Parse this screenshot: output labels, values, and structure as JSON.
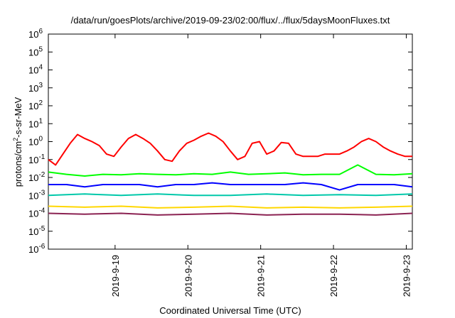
{
  "chart_data": {
    "type": "line",
    "title": "/data/run/goesPlots/archive/2019-09-23/02:00/flux/../flux/5daysMoonFluxes.txt",
    "xlabel": "Coordinated Universal Time (UTC)",
    "ylabel": "protons/cm2-s-sr-MeV",
    "ylabel_parts": {
      "pre": "protons/cm",
      "sup": "2",
      "post": "-s-sr-MeV"
    },
    "yscale": "log",
    "ylim": [
      1e-06,
      1000000.0
    ],
    "y_ticks": [
      {
        "value": 1e-06,
        "base": "10",
        "exp": "-6"
      },
      {
        "value": 1e-05,
        "base": "10",
        "exp": "-5"
      },
      {
        "value": 0.0001,
        "base": "10",
        "exp": "-4"
      },
      {
        "value": 0.001,
        "base": "10",
        "exp": "-3"
      },
      {
        "value": 0.01,
        "base": "10",
        "exp": "-2"
      },
      {
        "value": 0.1,
        "base": "10",
        "exp": "-1"
      },
      {
        "value": 1.0,
        "base": "10",
        "exp": "0"
      },
      {
        "value": 10.0,
        "base": "10",
        "exp": "1"
      },
      {
        "value": 100.0,
        "base": "10",
        "exp": "2"
      },
      {
        "value": 1000.0,
        "base": "10",
        "exp": "3"
      },
      {
        "value": 10000.0,
        "base": "10",
        "exp": "4"
      },
      {
        "value": 100000.0,
        "base": "10",
        "exp": "5"
      },
      {
        "value": 1000000.0,
        "base": "10",
        "exp": "6"
      }
    ],
    "xlim": [
      "2019-09-18 02:00",
      "2019-09-23 02:00"
    ],
    "x_ticks": [
      "2019-9-19",
      "2019-9-20",
      "2019-9-21",
      "2019-9-22",
      "2019-9-23"
    ],
    "grid": false,
    "legend": "none",
    "series": [
      {
        "color": "#ff0000",
        "x_days": [
          0,
          0.1,
          0.2,
          0.3,
          0.4,
          0.5,
          0.6,
          0.7,
          0.8,
          0.9,
          1.0,
          1.1,
          1.2,
          1.3,
          1.4,
          1.5,
          1.6,
          1.7,
          1.8,
          1.9,
          2.0,
          2.1,
          2.2,
          2.3,
          2.4,
          2.5,
          2.6,
          2.7,
          2.8,
          2.9,
          3.0,
          3.1,
          3.2,
          3.3,
          3.4,
          3.5,
          3.6,
          3.7,
          3.8,
          3.9,
          4.0,
          4.1,
          4.2,
          4.3,
          4.4,
          4.5,
          4.6,
          4.7,
          4.8,
          4.9,
          5.0
        ],
        "values": [
          0.1,
          0.05,
          0.2,
          0.8,
          2.5,
          1.5,
          1.0,
          0.6,
          0.2,
          0.15,
          0.5,
          1.5,
          2.5,
          1.5,
          0.8,
          0.3,
          0.1,
          0.08,
          0.3,
          0.8,
          1.2,
          2.0,
          3.0,
          2.0,
          1.0,
          0.3,
          0.1,
          0.15,
          0.8,
          1.0,
          0.2,
          0.3,
          0.9,
          0.8,
          0.2,
          0.15,
          0.15,
          0.15,
          0.2,
          0.2,
          0.2,
          0.3,
          0.5,
          1.0,
          1.5,
          1.0,
          0.5,
          0.3,
          0.2,
          0.15,
          0.15
        ]
      },
      {
        "color": "#00ff00",
        "x_days": [
          0,
          0.25,
          0.5,
          0.75,
          1.0,
          1.25,
          1.5,
          1.75,
          2.0,
          2.25,
          2.5,
          2.75,
          3.0,
          3.25,
          3.5,
          3.75,
          4.0,
          4.25,
          4.5,
          4.75,
          5.0
        ],
        "values": [
          0.02,
          0.015,
          0.012,
          0.015,
          0.014,
          0.016,
          0.015,
          0.014,
          0.016,
          0.015,
          0.02,
          0.015,
          0.016,
          0.018,
          0.014,
          0.015,
          0.015,
          0.05,
          0.015,
          0.014,
          0.016
        ]
      },
      {
        "color": "#0000ff",
        "x_days": [
          0,
          0.25,
          0.5,
          0.75,
          1.0,
          1.25,
          1.5,
          1.75,
          2.0,
          2.25,
          2.5,
          2.75,
          3.0,
          3.25,
          3.5,
          3.75,
          4.0,
          4.25,
          4.5,
          4.75,
          5.0
        ],
        "values": [
          0.004,
          0.004,
          0.003,
          0.004,
          0.004,
          0.004,
          0.003,
          0.004,
          0.004,
          0.005,
          0.004,
          0.004,
          0.004,
          0.004,
          0.005,
          0.004,
          0.002,
          0.004,
          0.004,
          0.004,
          0.003
        ]
      },
      {
        "color": "#00c8aa",
        "x_days": [
          0,
          0.5,
          1.0,
          1.5,
          2.0,
          2.5,
          3.0,
          3.5,
          4.0,
          4.5,
          5.0
        ],
        "values": [
          0.001,
          0.0012,
          0.001,
          0.0012,
          0.001,
          0.001,
          0.0012,
          0.001,
          0.0011,
          0.001,
          0.0012
        ]
      },
      {
        "color": "#ffd700",
        "x_days": [
          0,
          0.5,
          1.0,
          1.5,
          2.0,
          2.5,
          3.0,
          3.5,
          4.0,
          4.5,
          5.0
        ],
        "values": [
          0.00025,
          0.00022,
          0.00025,
          0.0002,
          0.00022,
          0.00025,
          0.0002,
          0.00022,
          0.0002,
          0.00022,
          0.00025
        ]
      },
      {
        "color": "#8b2252",
        "x_days": [
          0,
          0.5,
          1.0,
          1.5,
          2.0,
          2.5,
          3.0,
          3.5,
          4.0,
          4.5,
          5.0
        ],
        "values": [
          0.0001,
          9e-05,
          0.0001,
          8e-05,
          9e-05,
          0.0001,
          8e-05,
          9e-05,
          9e-05,
          8e-05,
          0.0001
        ]
      }
    ]
  }
}
